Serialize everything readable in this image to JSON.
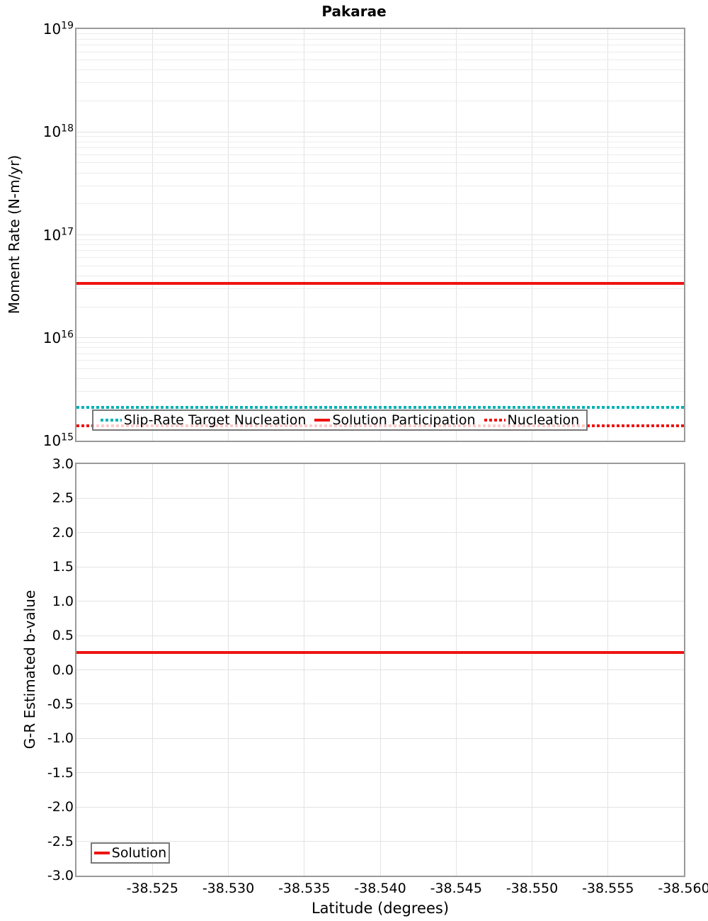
{
  "title": "Pakarae",
  "colors": {
    "red": "#ee1411",
    "teal": "#00b2b5",
    "grid": "#e9e9e9",
    "plot_border": "#9a9a9a",
    "legend_border": "#787878"
  },
  "chart_data": [
    {
      "type": "line",
      "subplot": "moment-rate",
      "title": "Pakarae",
      "ylabel": "Moment Rate (N-m/yr)",
      "xlabel": "",
      "yscale": "log",
      "ylim": [
        1000000000000000.0,
        1e+19
      ],
      "ytick_exponents": [
        19,
        18,
        17,
        16,
        15
      ],
      "xlim": [
        -38.52,
        -38.56
      ],
      "xticks": [
        -38.525,
        -38.53,
        -38.535,
        -38.54,
        -38.545,
        -38.55,
        -38.555,
        -38.56
      ],
      "xtick_labels_shown": false,
      "grid": true,
      "legend_position": "inside-bottom-center",
      "series": [
        {
          "name": "Slip-Rate Target Nucleation",
          "color": "#00b2b5",
          "style": "dotted",
          "x": [
            -38.52,
            -38.56
          ],
          "y": [
            2100000000000000.0,
            2100000000000000.0
          ]
        },
        {
          "name": "Solution Participation",
          "color": "#ee1411",
          "style": "solid",
          "x": [
            -38.52,
            -38.56
          ],
          "y": [
            3.4e+16,
            3.4e+16
          ]
        },
        {
          "name": "Nucleation",
          "color": "#ee1411",
          "style": "dotted",
          "x": [
            -38.52,
            -38.56
          ],
          "y": [
            1400000000000000.0,
            1400000000000000.0
          ]
        }
      ]
    },
    {
      "type": "line",
      "subplot": "b-value",
      "ylabel": "G-R Estimated b-value",
      "xlabel": "Latitude (degrees)",
      "yscale": "linear",
      "ylim": [
        -3.0,
        3.0
      ],
      "ytick_step": 0.5,
      "xlim": [
        -38.52,
        -38.56
      ],
      "xticks": [
        -38.525,
        -38.53,
        -38.535,
        -38.54,
        -38.545,
        -38.55,
        -38.555,
        -38.56
      ],
      "xtick_labels_shown": true,
      "grid": true,
      "legend_position": "inside-bottom-left",
      "series": [
        {
          "name": "Solution",
          "color": "#ee1411",
          "style": "solid",
          "x": [
            -38.52,
            -38.56
          ],
          "y": [
            0.25,
            0.25
          ]
        }
      ]
    }
  ]
}
